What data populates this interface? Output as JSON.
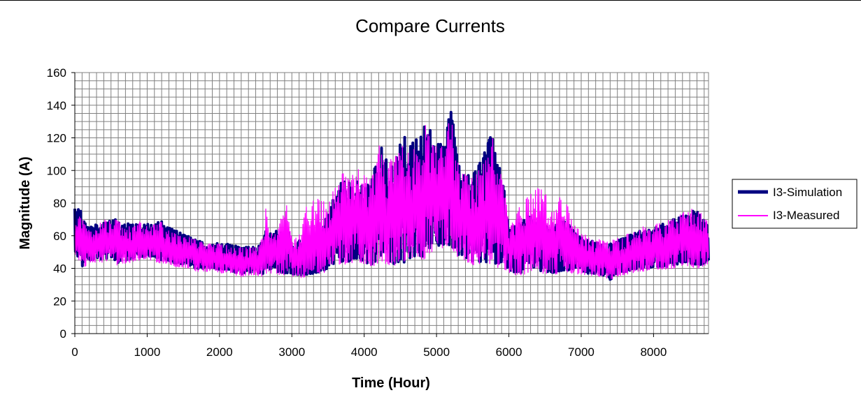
{
  "chart_data": {
    "type": "line",
    "title": "Compare Currents",
    "xlabel": "Time (Hour)",
    "ylabel": "Magnitude (A)",
    "xlim": [
      0,
      8760
    ],
    "ylim": [
      0,
      160
    ],
    "x_ticks": [
      0,
      1000,
      2000,
      3000,
      4000,
      5000,
      6000,
      7000,
      8000
    ],
    "y_ticks": [
      0,
      20,
      40,
      60,
      80,
      100,
      120,
      140,
      160
    ],
    "grid": true,
    "legend_position": "right",
    "x": [
      0,
      50,
      100,
      200,
      300,
      400,
      500,
      600,
      700,
      800,
      900,
      1000,
      1100,
      1200,
      1300,
      1400,
      1500,
      1600,
      1700,
      1800,
      1900,
      2000,
      2100,
      2200,
      2300,
      2400,
      2500,
      2600,
      2650,
      2700,
      2800,
      2900,
      2950,
      3000,
      3100,
      3200,
      3300,
      3400,
      3500,
      3600,
      3700,
      3800,
      3900,
      4000,
      4100,
      4200,
      4250,
      4300,
      4400,
      4500,
      4550,
      4600,
      4700,
      4800,
      4850,
      4900,
      5000,
      5100,
      5200,
      5300,
      5400,
      5500,
      5600,
      5700,
      5780,
      5850,
      5900,
      6000,
      6100,
      6200,
      6300,
      6400,
      6500,
      6600,
      6700,
      6800,
      6900,
      7000,
      7100,
      7200,
      7300,
      7400,
      7500,
      7600,
      7700,
      7800,
      7900,
      8000,
      8100,
      8200,
      8300,
      8400,
      8500,
      8600,
      8700,
      8760
    ],
    "series": [
      {
        "name": "I3-Simulation",
        "color": "#000080",
        "low": [
          50,
          45,
          40,
          44,
          45,
          44,
          46,
          42,
          44,
          45,
          46,
          47,
          45,
          44,
          44,
          42,
          42,
          41,
          38,
          39,
          40,
          38,
          39,
          37,
          36,
          37,
          37,
          36,
          37,
          37,
          37,
          36,
          36,
          36,
          35,
          35,
          36,
          37,
          38,
          42,
          42,
          42,
          44,
          42,
          40,
          42,
          42,
          40,
          40,
          40,
          40,
          42,
          44,
          44,
          44,
          48,
          50,
          52,
          50,
          46,
          44,
          42,
          40,
          40,
          40,
          40,
          40,
          38,
          36,
          36,
          38,
          38,
          36,
          36,
          37,
          38,
          37,
          37,
          36,
          36,
          35,
          32,
          36,
          37,
          38,
          39,
          39,
          40,
          40,
          40,
          41,
          42,
          42,
          40,
          42,
          44
        ],
        "high": [
          78,
          81,
          74,
          66,
          68,
          70,
          72,
          71,
          69,
          68,
          68,
          69,
          69,
          70,
          66,
          64,
          62,
          60,
          58,
          57,
          57,
          56,
          56,
          55,
          54,
          54,
          54,
          58,
          66,
          65,
          64,
          65,
          66,
          54,
          58,
          60,
          62,
          66,
          75,
          90,
          96,
          95,
          98,
          93,
          95,
          116,
          118,
          110,
          112,
          120,
          128,
          118,
          122,
          128,
          137,
          130,
          120,
          120,
          143,
          110,
          102,
          100,
          108,
          120,
          128,
          104,
          106,
          66,
          68,
          72,
          74,
          70,
          68,
          64,
          72,
          70,
          64,
          60,
          58,
          58,
          56,
          56,
          58,
          60,
          62,
          64,
          64,
          66,
          68,
          70,
          72,
          74,
          76,
          78,
          70,
          67
        ]
      },
      {
        "name": "I3-Measured",
        "color": "#ff00ff",
        "low": [
          48,
          44,
          38,
          42,
          43,
          42,
          44,
          40,
          42,
          43,
          44,
          45,
          43,
          42,
          42,
          40,
          40,
          39,
          37,
          37,
          38,
          36,
          37,
          35,
          34,
          35,
          35,
          34,
          35,
          35,
          35,
          34,
          34,
          34,
          33,
          33,
          34,
          35,
          36,
          40,
          40,
          40,
          42,
          40,
          38,
          40,
          40,
          38,
          38,
          38,
          38,
          40,
          42,
          42,
          42,
          46,
          48,
          50,
          48,
          44,
          42,
          40,
          38,
          38,
          38,
          38,
          38,
          36,
          34,
          34,
          36,
          36,
          33,
          34,
          35,
          36,
          35,
          35,
          34,
          34,
          34,
          32,
          34,
          35,
          36,
          37,
          37,
          38,
          38,
          38,
          39,
          40,
          40,
          38,
          40,
          42
        ],
        "high": [
          70,
          74,
          72,
          64,
          66,
          72,
          70,
          72,
          68,
          66,
          70,
          68,
          68,
          70,
          64,
          62,
          60,
          60,
          58,
          56,
          56,
          56,
          55,
          54,
          54,
          54,
          54,
          60,
          84,
          62,
          66,
          82,
          80,
          58,
          62,
          80,
          84,
          86,
          80,
          96,
          102,
          98,
          105,
          100,
          98,
          120,
          114,
          112,
          110,
          118,
          127,
          116,
          120,
          124,
          133,
          126,
          118,
          118,
          140,
          108,
          100,
          98,
          104,
          112,
          126,
          100,
          104,
          72,
          76,
          84,
          88,
          92,
          90,
          76,
          86,
          82,
          70,
          64,
          60,
          60,
          58,
          58,
          60,
          62,
          64,
          66,
          68,
          68,
          70,
          72,
          72,
          76,
          78,
          80,
          72,
          70
        ]
      }
    ]
  }
}
